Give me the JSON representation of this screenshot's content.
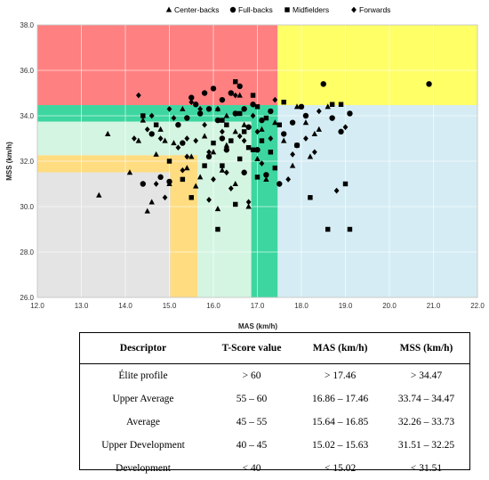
{
  "chart_data": {
    "type": "scatter",
    "xlabel": "MAS (km/h)",
    "ylabel": "MSS (km/h)",
    "xlim": [
      12.0,
      22.0
    ],
    "ylim": [
      26.0,
      38.0
    ],
    "xticks": [
      "12.0",
      "13.0",
      "14.0",
      "15.0",
      "16.0",
      "17.0",
      "18.0",
      "19.0",
      "20.0",
      "21.0",
      "22.0"
    ],
    "yticks": [
      "26.0",
      "28.0",
      "30.0",
      "32.0",
      "34.0",
      "36.0",
      "38.0"
    ],
    "grid": true,
    "legend_position": "top-right",
    "zones": [
      {
        "x": [
          12.0,
          17.46
        ],
        "y": [
          34.47,
          38.0
        ],
        "color": "#ff8080"
      },
      {
        "x": [
          17.46,
          22.0
        ],
        "y": [
          34.47,
          38.0
        ],
        "color": "#ffff66"
      },
      {
        "x": [
          17.46,
          22.0
        ],
        "y": [
          26.0,
          34.47
        ],
        "color": "#d5ecf4"
      },
      {
        "x": [
          12.0,
          15.02
        ],
        "y": [
          26.0,
          31.51
        ],
        "color": "#e4e4e4"
      },
      {
        "x": [
          12.0,
          17.46
        ],
        "y": [
          33.74,
          34.47
        ],
        "color": "#3dd6a0"
      },
      {
        "x": [
          16.86,
          17.46
        ],
        "y": [
          26.0,
          34.47
        ],
        "color": "#3dd6a0"
      },
      {
        "x": [
          12.0,
          16.86
        ],
        "y": [
          32.26,
          33.74
        ],
        "color": "#d4f5e1"
      },
      {
        "x": [
          15.64,
          16.86
        ],
        "y": [
          26.0,
          33.74
        ],
        "color": "#d4f5e1"
      },
      {
        "x": [
          12.0,
          15.64
        ],
        "y": [
          31.51,
          32.26
        ],
        "color": "#ffdc80"
      },
      {
        "x": [
          15.02,
          15.64
        ],
        "y": [
          26.0,
          32.26
        ],
        "color": "#ffdc80"
      }
    ],
    "series": [
      {
        "name": "Center-backs",
        "marker": "triangle",
        "points": [
          [
            13.4,
            30.5
          ],
          [
            13.6,
            33.2
          ],
          [
            14.1,
            31.5
          ],
          [
            14.3,
            32.9
          ],
          [
            14.4,
            33.8
          ],
          [
            14.5,
            29.8
          ],
          [
            14.6,
            30.2
          ],
          [
            14.7,
            32.3
          ],
          [
            14.8,
            33.4
          ],
          [
            14.9,
            32.9
          ],
          [
            15.0,
            31.0
          ],
          [
            15.1,
            32.8
          ],
          [
            15.3,
            34.3
          ],
          [
            15.4,
            31.7
          ],
          [
            15.5,
            32.2
          ],
          [
            15.6,
            30.9
          ],
          [
            15.7,
            31.3
          ],
          [
            15.8,
            33.1
          ],
          [
            16.0,
            32.4
          ],
          [
            16.1,
            34.3
          ],
          [
            16.1,
            29.9
          ],
          [
            16.2,
            31.6
          ],
          [
            16.3,
            34.0
          ],
          [
            16.3,
            32.7
          ],
          [
            16.5,
            33.3
          ],
          [
            16.5,
            31.0
          ],
          [
            16.6,
            34.9
          ],
          [
            16.7,
            33.6
          ],
          [
            16.8,
            30.0
          ],
          [
            17.0,
            32.1
          ],
          [
            17.1,
            33.4
          ],
          [
            17.2,
            31.2
          ],
          [
            17.4,
            33.7
          ],
          [
            17.6,
            32.9
          ],
          [
            17.8,
            31.8
          ],
          [
            17.9,
            34.4
          ],
          [
            18.1,
            33.7
          ],
          [
            18.2,
            32.2
          ],
          [
            18.3,
            33.2
          ],
          [
            18.4,
            33.4
          ],
          [
            18.6,
            34.4
          ]
        ]
      },
      {
        "name": "Full-backs",
        "marker": "circle",
        "points": [
          [
            14.4,
            31.0
          ],
          [
            14.6,
            33.2
          ],
          [
            14.8,
            31.3
          ],
          [
            15.0,
            31.1
          ],
          [
            15.2,
            33.6
          ],
          [
            15.3,
            32.8
          ],
          [
            15.5,
            34.8
          ],
          [
            15.6,
            34.5
          ],
          [
            15.7,
            34.1
          ],
          [
            15.8,
            35.0
          ],
          [
            15.9,
            34.3
          ],
          [
            16.0,
            35.2
          ],
          [
            16.1,
            33.8
          ],
          [
            16.2,
            34.7
          ],
          [
            16.3,
            32.5
          ],
          [
            16.4,
            35.0
          ],
          [
            16.5,
            34.1
          ],
          [
            16.6,
            35.3
          ],
          [
            16.7,
            34.3
          ],
          [
            16.8,
            33.5
          ],
          [
            16.9,
            34.5
          ],
          [
            17.0,
            32.5
          ],
          [
            17.1,
            33.8
          ],
          [
            17.2,
            31.4
          ],
          [
            17.3,
            34.2
          ],
          [
            17.5,
            31.0
          ],
          [
            17.6,
            33.2
          ],
          [
            17.8,
            33.7
          ],
          [
            17.9,
            32.7
          ],
          [
            18.0,
            34.4
          ],
          [
            18.1,
            34.0
          ],
          [
            18.5,
            35.4
          ],
          [
            18.7,
            33.9
          ],
          [
            18.9,
            33.3
          ],
          [
            19.1,
            34.1
          ],
          [
            20.9,
            35.4
          ],
          [
            15.9,
            32.2
          ],
          [
            16.7,
            31.5
          ],
          [
            16.2,
            33.0
          ],
          [
            15.4,
            33.9
          ]
        ]
      },
      {
        "name": "Midfielders",
        "marker": "square",
        "points": [
          [
            14.4,
            34.0
          ],
          [
            14.7,
            33.6
          ],
          [
            15.0,
            32.0
          ],
          [
            15.3,
            31.2
          ],
          [
            15.5,
            30.4
          ],
          [
            15.8,
            31.8
          ],
          [
            16.0,
            32.8
          ],
          [
            16.1,
            29.0
          ],
          [
            16.2,
            31.8
          ],
          [
            16.3,
            33.6
          ],
          [
            16.4,
            32.9
          ],
          [
            16.5,
            35.5
          ],
          [
            16.5,
            30.1
          ],
          [
            16.6,
            32.1
          ],
          [
            16.7,
            33.3
          ],
          [
            16.8,
            32.6
          ],
          [
            16.9,
            34.9
          ],
          [
            16.9,
            32.5
          ],
          [
            17.0,
            34.4
          ],
          [
            17.0,
            31.3
          ],
          [
            17.1,
            32.9
          ],
          [
            17.2,
            33.9
          ],
          [
            17.3,
            32.4
          ],
          [
            17.4,
            31.7
          ],
          [
            17.5,
            33.6
          ],
          [
            17.6,
            34.6
          ],
          [
            17.9,
            32.7
          ],
          [
            18.2,
            30.4
          ],
          [
            18.6,
            29.0
          ],
          [
            18.7,
            34.5
          ],
          [
            18.9,
            34.5
          ],
          [
            19.0,
            31.0
          ],
          [
            19.1,
            29.0
          ],
          [
            16.2,
            33.8
          ],
          [
            16.6,
            34.1
          ]
        ]
      },
      {
        "name": "Forwards",
        "marker": "diamond",
        "points": [
          [
            14.2,
            33.0
          ],
          [
            14.3,
            34.9
          ],
          [
            14.5,
            33.4
          ],
          [
            14.6,
            34.0
          ],
          [
            14.7,
            31.0
          ],
          [
            14.8,
            33.0
          ],
          [
            14.9,
            30.4
          ],
          [
            15.0,
            34.3
          ],
          [
            15.1,
            33.9
          ],
          [
            15.2,
            32.6
          ],
          [
            15.3,
            31.6
          ],
          [
            15.4,
            33.0
          ],
          [
            15.5,
            34.6
          ],
          [
            15.6,
            32.9
          ],
          [
            15.7,
            34.3
          ],
          [
            15.8,
            33.6
          ],
          [
            15.9,
            32.4
          ],
          [
            16.0,
            31.2
          ],
          [
            16.1,
            34.3
          ],
          [
            16.2,
            33.3
          ],
          [
            16.3,
            31.5
          ],
          [
            16.4,
            30.8
          ],
          [
            16.5,
            34.9
          ],
          [
            16.6,
            33.1
          ],
          [
            16.7,
            32.9
          ],
          [
            16.8,
            30.2
          ],
          [
            16.9,
            34.0
          ],
          [
            17.0,
            33.3
          ],
          [
            17.1,
            31.9
          ],
          [
            17.3,
            33.0
          ],
          [
            17.4,
            34.7
          ],
          [
            17.7,
            31.2
          ],
          [
            17.8,
            32.3
          ],
          [
            18.1,
            33.0
          ],
          [
            18.3,
            32.4
          ],
          [
            18.4,
            34.2
          ],
          [
            18.8,
            30.7
          ],
          [
            19.0,
            33.5
          ],
          [
            15.9,
            30.3
          ],
          [
            15.4,
            32.2
          ]
        ]
      }
    ]
  },
  "table": {
    "headers": [
      "Descriptor",
      "T-Score value",
      "MAS (km/h)",
      "MSS (km/h)"
    ],
    "rows": [
      [
        "Élite profile",
        "> 60",
        "> 17.46",
        "> 34.47"
      ],
      [
        "Upper Average",
        "55 – 60",
        "16.86 – 17.46",
        "33.74 – 34.47"
      ],
      [
        "Average",
        "45 – 55",
        "15.64 – 16.85",
        "32.26 – 33.73"
      ],
      [
        "Upper Development",
        "40 – 45",
        "15.02 – 15.63",
        "31.51 – 32.25"
      ],
      [
        "Development",
        "< 40",
        "< 15.02",
        "< 31.51"
      ]
    ]
  }
}
